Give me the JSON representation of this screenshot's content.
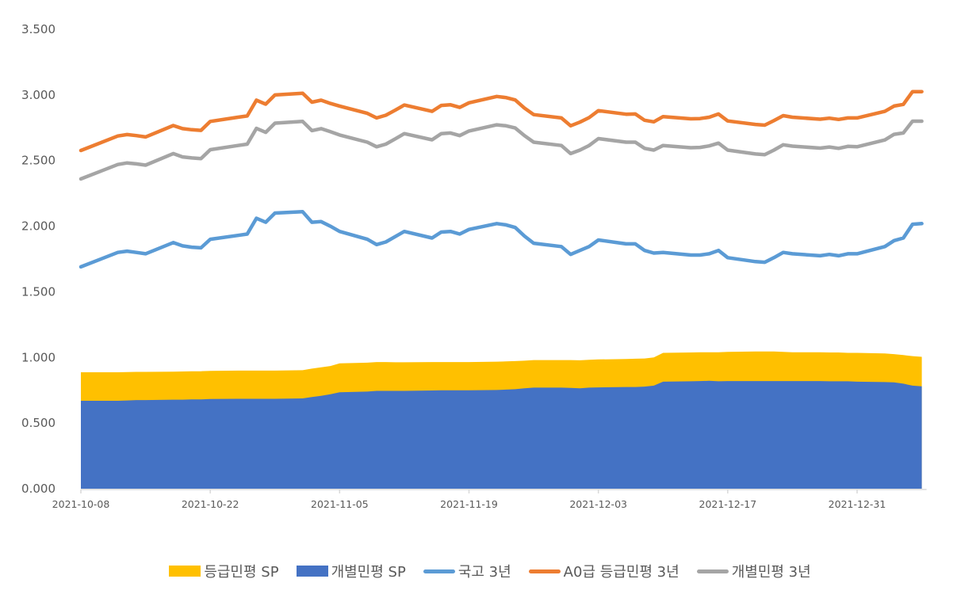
{
  "chart_data": {
    "type": "line",
    "title": "",
    "xlabel": "",
    "ylabel": "",
    "ylim": [
      0,
      3.5
    ],
    "yticks": [
      "0.000",
      "0.500",
      "1.000",
      "1.500",
      "2.000",
      "2.500",
      "3.000",
      "3.500"
    ],
    "xticks": [
      "2021-10-08",
      "2021-10-22",
      "2021-11-05",
      "2021-11-19",
      "2021-12-03",
      "2021-12-17",
      "2021-12-31"
    ],
    "grid": false,
    "legend_position": "bottom",
    "x": [
      "2021-10-08",
      "2021-10-12",
      "2021-10-13",
      "2021-10-14",
      "2021-10-15",
      "2021-10-18",
      "2021-10-19",
      "2021-10-20",
      "2021-10-21",
      "2021-10-22",
      "2021-10-25",
      "2021-10-26",
      "2021-10-27",
      "2021-10-28",
      "2021-10-29",
      "2021-11-01",
      "2021-11-02",
      "2021-11-03",
      "2021-11-04",
      "2021-11-05",
      "2021-11-08",
      "2021-11-09",
      "2021-11-10",
      "2021-11-11",
      "2021-11-12",
      "2021-11-15",
      "2021-11-16",
      "2021-11-17",
      "2021-11-18",
      "2021-11-19",
      "2021-11-22",
      "2021-11-23",
      "2021-11-24",
      "2021-11-25",
      "2021-11-26",
      "2021-11-29",
      "2021-11-30",
      "2021-12-01",
      "2021-12-02",
      "2021-12-03",
      "2021-12-06",
      "2021-12-07",
      "2021-12-08",
      "2021-12-09",
      "2021-12-10",
      "2021-12-13",
      "2021-12-14",
      "2021-12-15",
      "2021-12-16",
      "2021-12-17",
      "2021-12-20",
      "2021-12-21",
      "2021-12-22",
      "2021-12-23",
      "2021-12-24",
      "2021-12-27",
      "2021-12-28",
      "2021-12-29",
      "2021-12-30",
      "2021-12-31",
      "2022-01-03",
      "2022-01-04",
      "2022-01-05",
      "2022-01-06",
      "2022-01-07"
    ],
    "series": [
      {
        "name": "등급민평 SP",
        "kind": "area",
        "color": "#FFC000",
        "values": [
          0.887,
          0.887,
          0.888,
          0.89,
          0.89,
          0.892,
          0.893,
          0.895,
          0.895,
          0.898,
          0.9,
          0.9,
          0.9,
          0.9,
          0.9,
          0.903,
          0.915,
          0.925,
          0.935,
          0.955,
          0.96,
          0.965,
          0.965,
          0.963,
          0.963,
          0.965,
          0.965,
          0.965,
          0.965,
          0.965,
          0.968,
          0.97,
          0.972,
          0.975,
          0.98,
          0.98,
          0.98,
          0.978,
          0.982,
          0.985,
          0.988,
          0.99,
          0.992,
          1.0,
          1.035,
          1.038,
          1.04,
          1.04,
          1.04,
          1.042,
          1.045,
          1.045,
          1.045,
          1.042,
          1.04,
          1.04,
          1.038,
          1.038,
          1.035,
          1.035,
          1.03,
          1.025,
          1.018,
          1.01,
          1.005
        ]
      },
      {
        "name": "개별민평 SP",
        "kind": "area",
        "color": "#4472C4",
        "values": [
          0.67,
          0.67,
          0.672,
          0.675,
          0.675,
          0.678,
          0.678,
          0.68,
          0.68,
          0.683,
          0.685,
          0.685,
          0.685,
          0.685,
          0.685,
          0.688,
          0.698,
          0.708,
          0.72,
          0.735,
          0.74,
          0.745,
          0.745,
          0.745,
          0.745,
          0.748,
          0.75,
          0.75,
          0.75,
          0.75,
          0.752,
          0.755,
          0.758,
          0.765,
          0.77,
          0.77,
          0.768,
          0.765,
          0.77,
          0.772,
          0.775,
          0.775,
          0.778,
          0.785,
          0.815,
          0.818,
          0.82,
          0.822,
          0.818,
          0.82,
          0.82,
          0.82,
          0.82,
          0.82,
          0.82,
          0.82,
          0.818,
          0.818,
          0.818,
          0.815,
          0.812,
          0.81,
          0.8,
          0.785,
          0.78
        ]
      },
      {
        "name": "국고 3년",
        "kind": "line",
        "color": "#5B9BD5",
        "values": [
          1.69,
          1.8,
          1.81,
          1.8,
          1.79,
          1.875,
          1.85,
          1.84,
          1.835,
          1.9,
          1.93,
          1.94,
          2.06,
          2.03,
          2.1,
          2.11,
          2.03,
          2.035,
          2.0,
          1.96,
          1.9,
          1.86,
          1.88,
          1.92,
          1.96,
          1.91,
          1.955,
          1.96,
          1.94,
          1.975,
          2.02,
          2.01,
          1.99,
          1.925,
          1.87,
          1.845,
          1.785,
          1.815,
          1.845,
          1.895,
          1.865,
          1.865,
          1.815,
          1.795,
          1.8,
          1.78,
          1.78,
          1.79,
          1.815,
          1.76,
          1.73,
          1.725,
          1.76,
          1.8,
          1.79,
          1.775,
          1.785,
          1.775,
          1.79,
          1.79,
          1.845,
          1.89,
          1.91,
          2.015,
          2.02
        ]
      },
      {
        "name": "A0급 등급민평 3년",
        "kind": "line",
        "color": "#ED7D31",
        "values": [
          2.577,
          2.687,
          2.698,
          2.69,
          2.68,
          2.767,
          2.743,
          2.735,
          2.73,
          2.798,
          2.83,
          2.84,
          2.96,
          2.93,
          3.0,
          3.013,
          2.945,
          2.96,
          2.935,
          2.915,
          2.86,
          2.825,
          2.845,
          2.883,
          2.923,
          2.875,
          2.92,
          2.925,
          2.905,
          2.94,
          2.988,
          2.98,
          2.962,
          2.9,
          2.85,
          2.825,
          2.765,
          2.793,
          2.827,
          2.88,
          2.853,
          2.855,
          2.807,
          2.795,
          2.835,
          2.818,
          2.82,
          2.83,
          2.855,
          2.802,
          2.775,
          2.77,
          2.805,
          2.842,
          2.83,
          2.815,
          2.823,
          2.813,
          2.825,
          2.825,
          2.875,
          2.915,
          2.928,
          3.025,
          3.025
        ]
      },
      {
        "name": "개별민평 3년",
        "kind": "line",
        "color": "#A5A5A5",
        "values": [
          2.36,
          2.47,
          2.482,
          2.475,
          2.465,
          2.553,
          2.528,
          2.52,
          2.515,
          2.583,
          2.615,
          2.625,
          2.745,
          2.715,
          2.785,
          2.798,
          2.728,
          2.743,
          2.72,
          2.695,
          2.64,
          2.605,
          2.625,
          2.665,
          2.705,
          2.658,
          2.705,
          2.71,
          2.69,
          2.725,
          2.772,
          2.765,
          2.748,
          2.69,
          2.64,
          2.615,
          2.553,
          2.58,
          2.615,
          2.667,
          2.64,
          2.64,
          2.593,
          2.58,
          2.615,
          2.598,
          2.6,
          2.612,
          2.633,
          2.58,
          2.55,
          2.545,
          2.58,
          2.62,
          2.61,
          2.595,
          2.603,
          2.593,
          2.608,
          2.605,
          2.657,
          2.7,
          2.71,
          2.8,
          2.8
        ]
      }
    ]
  }
}
